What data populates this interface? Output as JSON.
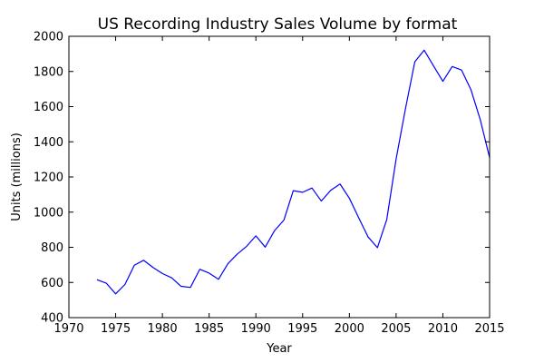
{
  "chart_data": {
    "type": "line",
    "title": "US Recording Industry Sales Volume by format",
    "xlabel": "Year",
    "ylabel": "Units (millions)",
    "xlim": [
      1970,
      2015
    ],
    "ylim": [
      400,
      2000
    ],
    "x_ticks": [
      1970,
      1975,
      1980,
      1985,
      1990,
      1995,
      2000,
      2005,
      2010,
      2015
    ],
    "y_ticks": [
      400,
      600,
      800,
      1000,
      1200,
      1400,
      1600,
      1800,
      2000
    ],
    "grid": false,
    "series": [
      {
        "color": "#0000ff",
        "x": [
          1973,
          1974,
          1975,
          1976,
          1977,
          1978,
          1979,
          1980,
          1981,
          1982,
          1983,
          1984,
          1985,
          1986,
          1987,
          1988,
          1989,
          1990,
          1991,
          1992,
          1993,
          1994,
          1995,
          1996,
          1997,
          1998,
          1999,
          2000,
          2001,
          2002,
          2003,
          2004,
          2005,
          2006,
          2007,
          2008,
          2009,
          2010,
          2011,
          2012,
          2013,
          2014,
          2015
        ],
        "values": [
          616,
          596,
          535,
          589,
          698,
          726,
          685,
          651,
          626,
          578,
          572,
          675,
          653,
          618,
          706,
          761,
          805,
          865,
          801,
          895,
          955,
          1122,
          1113,
          1137,
          1063,
          1124,
          1160,
          1079,
          968,
          859,
          798,
          958,
          1302,
          1588,
          1855,
          1921,
          1832,
          1744,
          1828,
          1808,
          1697,
          1526,
          1310
        ]
      }
    ]
  }
}
